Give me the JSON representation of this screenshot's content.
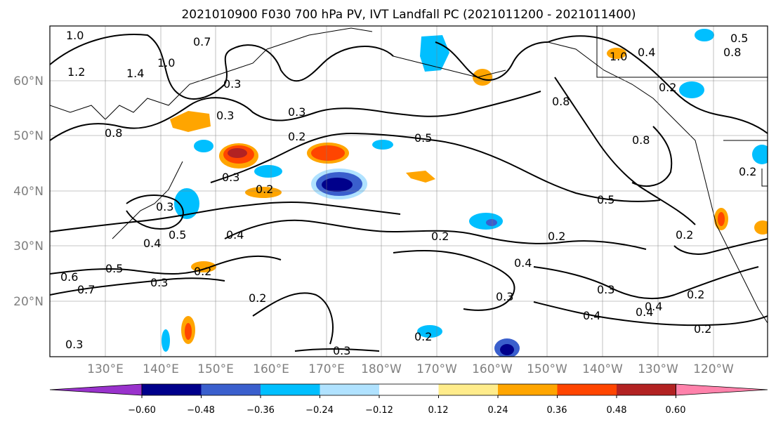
{
  "title": "2021010900 F030 700 hPa PV, IVT Landfall PC (2021011200 - 2021011400)",
  "lat_labels": [
    "60°N",
    "50°N",
    "40°N",
    "30°N",
    "20°N"
  ],
  "lon_labels": [
    "130°E",
    "140°E",
    "150°E",
    "160°E",
    "170°E",
    "180°W",
    "170°W",
    "160°W",
    "150°W",
    "140°W",
    "130°W",
    "120°W"
  ],
  "colorbar": {
    "ticks": [
      "−0.60",
      "−0.48",
      "−0.36",
      "−0.24",
      "−0.12",
      "0.12",
      "0.24",
      "0.36",
      "0.48",
      "0.60"
    ],
    "colors": [
      "#9932cc",
      "#00008b",
      "#3a5fcd",
      "#00bfff",
      "#b0e2ff",
      "#ffffff",
      "#ffec8b",
      "#ffa500",
      "#ff4500",
      "#b22222",
      "#ff82ab"
    ]
  },
  "contour_labels": [
    "1.0",
    "0.7",
    "1.2",
    "1.4",
    "1.0",
    "0.3",
    "0.3",
    "0.3",
    "0.8",
    "0.2",
    "0.5",
    "0.2",
    "0.3",
    "0.4",
    "0.5",
    "0.4",
    "0.2",
    "0.3",
    "0.2",
    "0.4",
    "0.5",
    "0.3",
    "0.2",
    "0.5",
    "0.2",
    "0.4",
    "0.3",
    "0.3",
    "0.2",
    "0.4",
    "0.2",
    "0.3",
    "1.0",
    "0.4",
    "0.8",
    "0.2",
    "0.8",
    "0.2",
    "0.8",
    "0.5",
    "0.7",
    "0.6",
    "0.2",
    "0.3",
    "0.2",
    "0.4"
  ]
}
